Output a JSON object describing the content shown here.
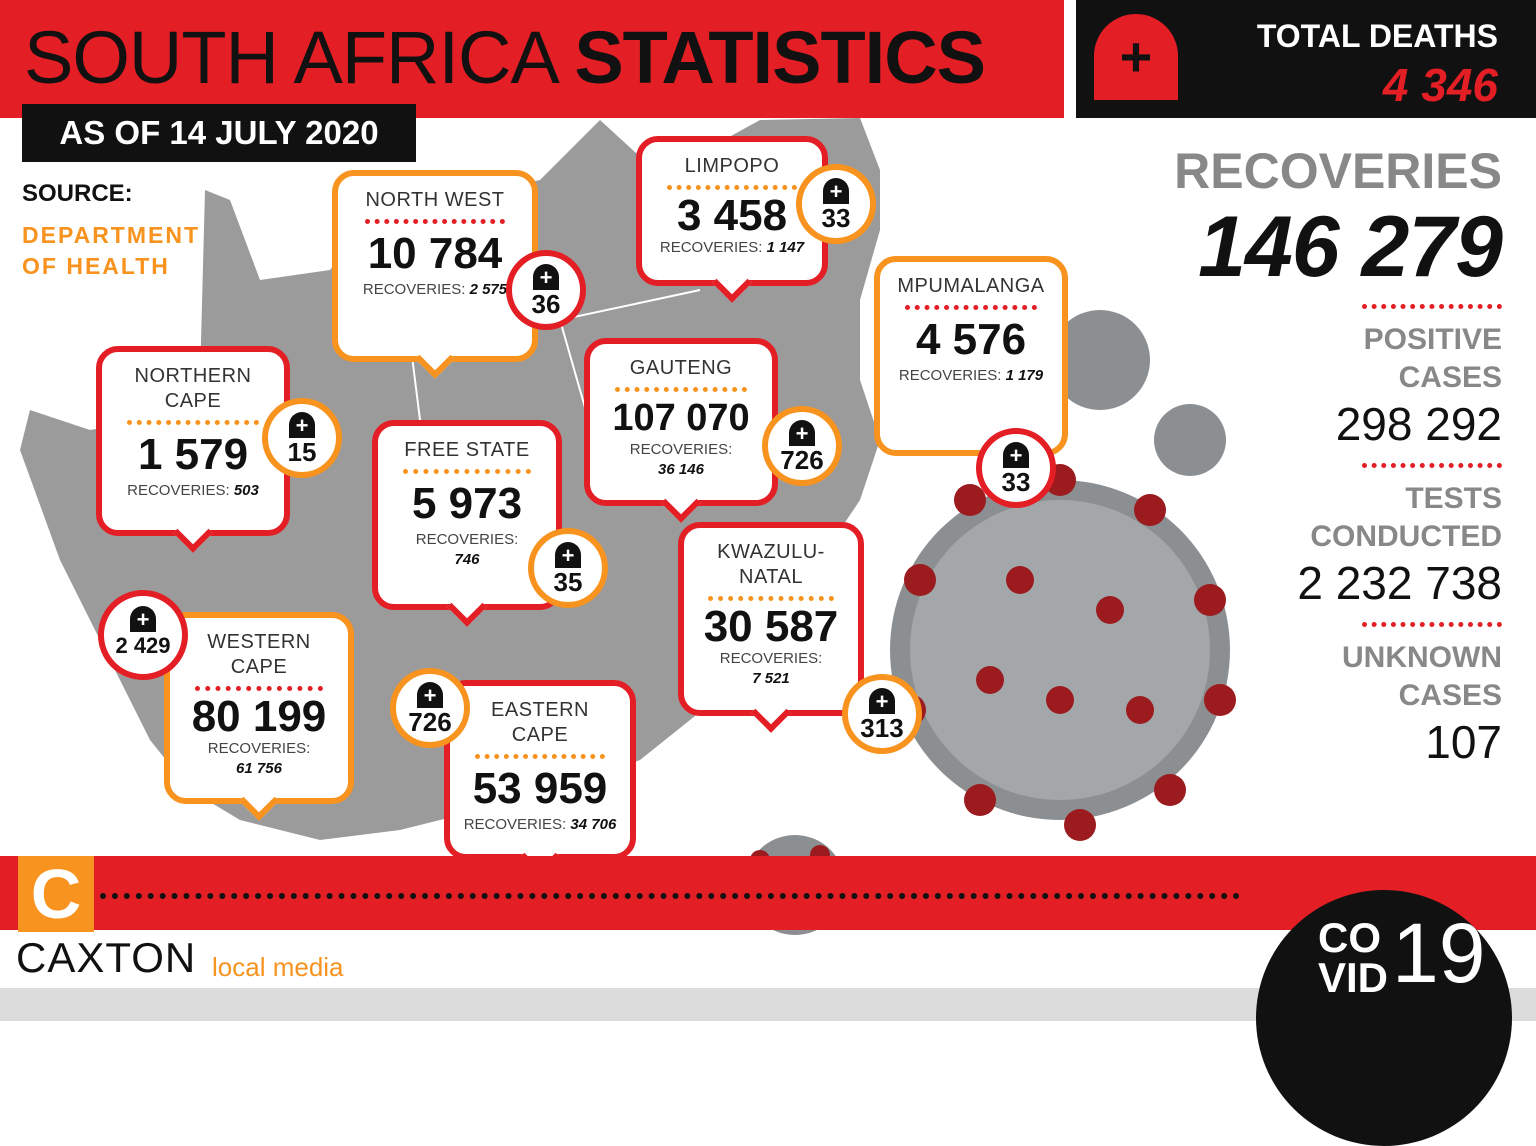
{
  "header": {
    "title_light": "SOUTH AFRICA",
    "title_bold": "STATISTICS",
    "date": "AS OF 14 JULY 2020",
    "source_label": "SOURCE:",
    "source_value": "DEPARTMENT OF HEALTH"
  },
  "deaths": {
    "label": "TOTAL DEATHS",
    "value": "4 346"
  },
  "summary": {
    "recoveries_label": "RECOVERIES",
    "recoveries_value": "146 279",
    "positive_label": "POSITIVE CASES",
    "positive_value": "298 292",
    "tests_label": "TESTS CONDUCTED",
    "tests_value": "2 232 738",
    "unknown_label": "UNKNOWN CASES",
    "unknown_value": "107"
  },
  "provinces": {
    "north_west": {
      "name": "NORTH WEST",
      "cases": "10 784",
      "recoveries_label": "RECOVERIES:",
      "recoveries": "2 575",
      "deaths": "36"
    },
    "limpopo": {
      "name": "LIMPOPO",
      "cases": "3 458",
      "recoveries_label": "RECOVERIES:",
      "recoveries": "1 147",
      "deaths": "33"
    },
    "mpumalanga": {
      "name": "MPUMALANGA",
      "cases": "4 576",
      "recoveries_label": "RECOVERIES:",
      "recoveries": "1 179",
      "deaths": "33"
    },
    "gauteng": {
      "name": "GAUTENG",
      "cases": "107 070",
      "recoveries_label": "RECOVERIES:",
      "recoveries": "36 146",
      "deaths": "726"
    },
    "northern_cape": {
      "name": "NORTHERN CAPE",
      "cases": "1 579",
      "recoveries_label": "RECOVERIES:",
      "recoveries": "503",
      "deaths": "15"
    },
    "free_state": {
      "name": "FREE STATE",
      "cases": "5 973",
      "recoveries_label": "RECOVERIES:",
      "recoveries": "746",
      "deaths": "35"
    },
    "kwazulu_natal": {
      "name": "KWAZULU-NATAL",
      "cases": "30 587",
      "recoveries_label": "RECOVERIES:",
      "recoveries": "7 521",
      "deaths": "313"
    },
    "western_cape": {
      "name": "WESTERN CAPE",
      "cases": "80 199",
      "recoveries_label": "RECOVERIES:",
      "recoveries": "61 756",
      "deaths": "2 429"
    },
    "eastern_cape": {
      "name": "EASTERN CAPE",
      "cases": "53 959",
      "recoveries_label": "RECOVERIES:",
      "recoveries": "34 706",
      "deaths": "726"
    }
  },
  "branding": {
    "logo_letter": "C",
    "company": "CAXTON",
    "company_sub": "local media",
    "covid_word_1": "CO",
    "covid_word_2": "VID",
    "covid_num": "19"
  },
  "colors": {
    "red": "#e31e24",
    "orange": "#f7931e",
    "black": "#111111",
    "grey_map": "#9b9b9b"
  }
}
